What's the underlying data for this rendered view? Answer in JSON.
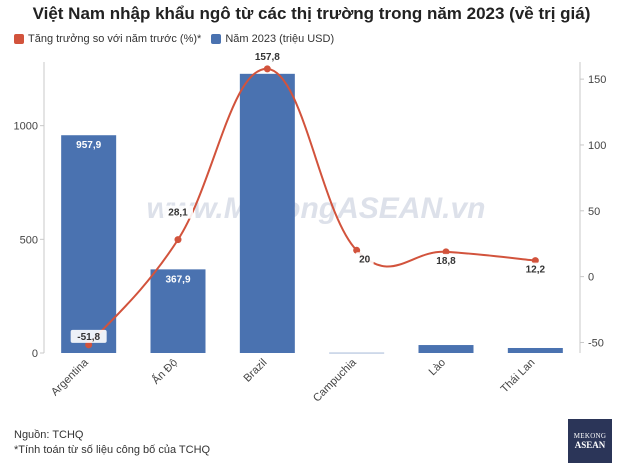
{
  "header": {
    "title": "Việt Nam nhập khẩu ngô từ các thị trường trong năm 2023 (về trị giá)"
  },
  "watermark": "www.MekongASEAN.vn",
  "footer": {
    "source": "Nguồn: TCHQ",
    "note": "*Tính toán từ số liệu công bố của TCHQ"
  },
  "logo": {
    "line1": "MEKONG",
    "line2": "ASEAN"
  },
  "chart_data": {
    "type": "bar",
    "categories": [
      "Argentina",
      "Ấn Độ",
      "Brazil",
      "Campuchia",
      "Lào",
      "Thái Lan"
    ],
    "series": [
      {
        "name": "Năm 2023 (triệu USD)",
        "type": "bar",
        "axis": "left",
        "color": "#4a72b0",
        "values": [
          957.9,
          367.9,
          1228,
          1,
          35,
          22
        ],
        "labels": [
          "957,9",
          "367,9",
          "",
          "",
          "",
          ""
        ]
      },
      {
        "name": "Tăng trưởng so với năm trước (%)*",
        "type": "line",
        "axis": "right",
        "color": "#d2533c",
        "values": [
          -51.8,
          28.1,
          157.8,
          20,
          18.8,
          12.2
        ],
        "labels": [
          "-51,8",
          "28,1",
          "157,8",
          "20",
          "18,8",
          "12,2"
        ]
      }
    ],
    "y_left": {
      "min": 0,
      "max": 1280,
      "ticks": [
        0,
        500,
        1000
      ],
      "tick_labels": [
        "0",
        "500",
        "1000"
      ]
    },
    "y_right": {
      "min": -58,
      "max": 163,
      "ticks": [
        -50,
        0,
        50,
        100,
        150
      ],
      "tick_labels": [
        "-50",
        "0",
        "50",
        "100",
        "150"
      ]
    },
    "legend_position": "top-left"
  }
}
